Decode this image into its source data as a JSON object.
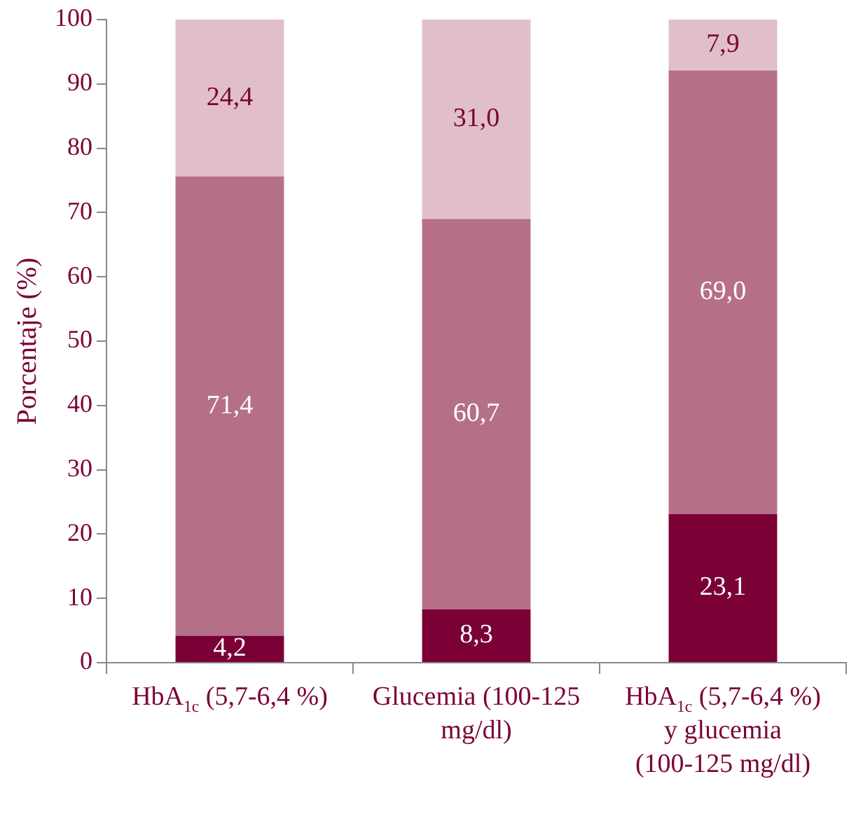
{
  "chart_data": {
    "type": "bar",
    "stacked": true,
    "ylabel": "Porcentaje (%)",
    "categories": [
      "HbA$_{1c}$ (5,7-6,4 %)",
      "Glucemia (100-125 mg/dl)",
      "HbA$_{1c}$ (5,7-6,4 %) y glucemia (100-125 mg/dl)"
    ],
    "series": [
      {
        "color": "#7a0036",
        "values": [
          4.2,
          8.3,
          23.1
        ],
        "value_labels": [
          "4,2",
          "8,3",
          "23,1"
        ]
      },
      {
        "color": "#b57088",
        "values": [
          71.4,
          60.7,
          69.0
        ],
        "value_labels": [
          "71,4",
          "60,7",
          "69,0"
        ]
      },
      {
        "color": "#e0bfca",
        "values": [
          24.4,
          31.0,
          7.9
        ],
        "value_labels": [
          "24,4",
          "31,0",
          "7,9"
        ]
      }
    ],
    "ylim": [
      0,
      100
    ],
    "yticks": [
      0,
      10,
      20,
      30,
      40,
      50,
      60,
      70,
      80,
      90,
      100
    ],
    "grid": false,
    "legend": false
  }
}
